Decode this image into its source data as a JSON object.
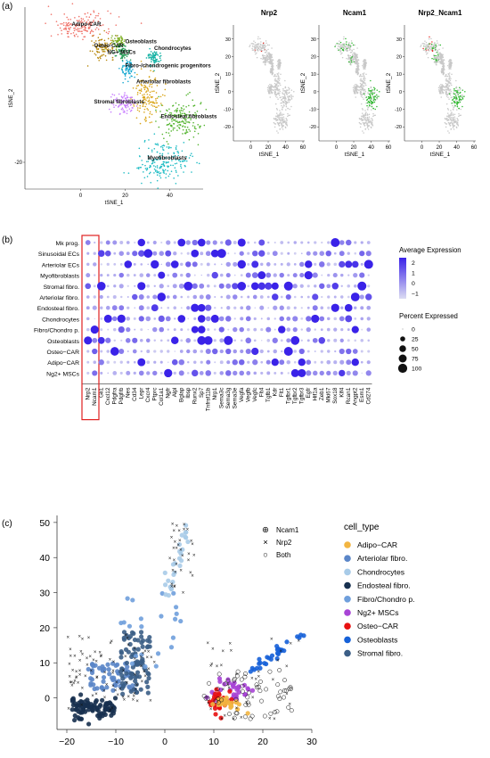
{
  "panel_labels": {
    "a": "(a)",
    "b": "(b)",
    "c": "(c)"
  },
  "chart_data": [
    {
      "type": "scatter",
      "panel": "a-main",
      "xlabel": "tSNE_1",
      "ylabel": "tSNE_2",
      "xticks": [
        0,
        20,
        40
      ],
      "yticks": [
        -20
      ],
      "xlim": [
        -25,
        55
      ],
      "ylim": [
        -30,
        38
      ],
      "clusters": [
        {
          "name": "Adipo-CAR",
          "color": "#f0736a",
          "cx": 0,
          "cy": 31,
          "sx": 7,
          "sy": 2.5
        },
        {
          "name": "Osteo-CAR",
          "color": "#b98a10",
          "cx": 10,
          "cy": 23,
          "sx": 2.5,
          "sy": 2
        },
        {
          "name": "Osteoblasts",
          "color": "#7cae20",
          "cx": 17,
          "cy": 25,
          "sx": 1.5,
          "sy": 1.2
        },
        {
          "name": "NG+ MSCs",
          "color": "#2aa05a",
          "cx": 19,
          "cy": 21,
          "sx": 2,
          "sy": 1.5
        },
        {
          "name": "Chondrocytes",
          "color": "#13b1a3",
          "cx": 33,
          "cy": 19,
          "sx": 1.5,
          "sy": 1.5
        },
        {
          "name": "Fibro-/chondrogenic progenitors",
          "color": "#1aa9d1",
          "cx": 21,
          "cy": 15,
          "sx": 1.5,
          "sy": 2
        },
        {
          "name": "Arteriolar fibroblasts",
          "color": "#d9a416",
          "cx": 30,
          "cy": 5,
          "sx": 3,
          "sy": 4.5
        },
        {
          "name": "Stromal fibroblasts",
          "color": "#c77cff",
          "cx": 19,
          "cy": 2,
          "sx": 2.5,
          "sy": 2
        },
        {
          "name": "Endosteal fibroblasts",
          "color": "#53b42e",
          "cx": 45,
          "cy": -4,
          "sx": 5,
          "sy": 3.5
        },
        {
          "name": "Myofibroblasts",
          "color": "#1fbcc4",
          "cx": 37,
          "cy": -20,
          "sx": 6,
          "sy": 3.5
        }
      ]
    },
    {
      "type": "scatter",
      "panel": "a-feature",
      "titles": [
        "Nrp2",
        "Ncam1",
        "Nrp2_Ncam1"
      ],
      "xlabel": "tSNE_1",
      "ylabel": "tSNE_2",
      "xticks": [
        0,
        20,
        40,
        60
      ],
      "yticks": [
        -20,
        -10,
        0,
        10,
        20,
        30
      ],
      "xlim": [
        -20,
        62
      ],
      "ylim": [
        -28,
        38
      ],
      "highlight_colors": {
        "Nrp2": "#e8312a",
        "Ncam1": "#2fb82f",
        "base": "#c8c8c8"
      }
    },
    {
      "type": "dotplot",
      "panel": "b",
      "rows": [
        "Mk prog.",
        "Sinusoidal ECs",
        "Arteriolar ECs",
        "Myofibroblasts",
        "Stromal fibro.",
        "Arteriolar fibro.",
        "Endosteal fibro.",
        "Chondrocytes",
        "Fibro/Chondro p.",
        "Osteoblasts",
        "Osteo−CAR",
        "Adipo−CAR",
        "Ng2+ MSCs"
      ],
      "genes": [
        "Nrp2",
        "Ncam1",
        "Gli1",
        "Cxcl12",
        "Pdgfra",
        "Pdgfrb",
        "Nes",
        "Cd34",
        "Lepr",
        "Cxcr4",
        "Ptprc",
        "Col1a1",
        "Ngfr",
        "Alpl",
        "Bglap",
        "Ibsp",
        "Runx2",
        "Sp7",
        "Tnfrsf11b",
        "Nrp1",
        "Sema3c",
        "Sema3g",
        "Sema3e",
        "Vegfa",
        "Vegfb",
        "Vegfc",
        "Flt4",
        "Tgfb1",
        "Kdr",
        "Flt1",
        "Tgfbr1",
        "Tgfbr2",
        "Tgfbr3",
        "Egfr",
        "Hif1a",
        "Zeb1",
        "Mki67",
        "Sox18",
        "Klf4",
        "Rcan1",
        "Angpt2",
        "Esm1",
        "Cd274"
      ],
      "highlight_genes": [
        "Nrp2",
        "Ncam1"
      ],
      "legend": {
        "expression_title": "Average Expression",
        "expression_ticks": [
          2,
          1,
          0,
          -1
        ],
        "percent_title": "Percent Expressed",
        "percent_ticks": [
          0,
          25,
          50,
          75,
          100
        ]
      },
      "colors": {
        "high": "#3a22e8",
        "low": "#dcdcf2"
      }
    },
    {
      "type": "scatter",
      "panel": "c",
      "xticks": [
        -20,
        -10,
        0,
        10,
        20,
        30
      ],
      "yticks": [
        0,
        10,
        20,
        30,
        40,
        50
      ],
      "xlim": [
        -22,
        30
      ],
      "ylim": [
        -9,
        52
      ],
      "shape_legend": [
        "Ncam1",
        "Nrp2",
        "Both"
      ],
      "legend_title": "cell_type",
      "series": [
        {
          "name": "Adipo−CAR",
          "color": "#f2b541",
          "cx": 12.5,
          "cy": -2,
          "sx": 1.5,
          "sy": 1.2
        },
        {
          "name": "Arteriolar fibro.",
          "color": "#5b86c8",
          "cx": -13,
          "cy": 5,
          "sx": 3,
          "sy": 2.5
        },
        {
          "name": "Chondrocytes",
          "color": "#a8cbe8",
          "cx": 2,
          "cy": 40,
          "sx": 1.5,
          "sy": 3
        },
        {
          "name": "Endosteal fibro.",
          "color": "#17304f",
          "cx": -15,
          "cy": 0,
          "sx": 3,
          "sy": 2
        },
        {
          "name": "Fibro/Chondro p.",
          "color": "#6f9fdc",
          "cx": -2,
          "cy": 16,
          "sx": 2.5,
          "sy": 3
        },
        {
          "name": "Ng2+ MSCs",
          "color": "#a844d6",
          "cx": 14,
          "cy": 2,
          "sx": 2,
          "sy": 1.6
        },
        {
          "name": "Osteo−CAR",
          "color": "#e81010",
          "cx": 11,
          "cy": -1,
          "sx": 1.5,
          "sy": 1.5
        },
        {
          "name": "Osteoblasts",
          "color": "#1661d8",
          "cx": 24,
          "cy": 15,
          "sx": 3,
          "sy": 2
        },
        {
          "name": "Stromal fibro.",
          "color": "#3b5e86",
          "cx": -7,
          "cy": 5,
          "sx": 2.5,
          "sy": 3
        }
      ]
    }
  ]
}
